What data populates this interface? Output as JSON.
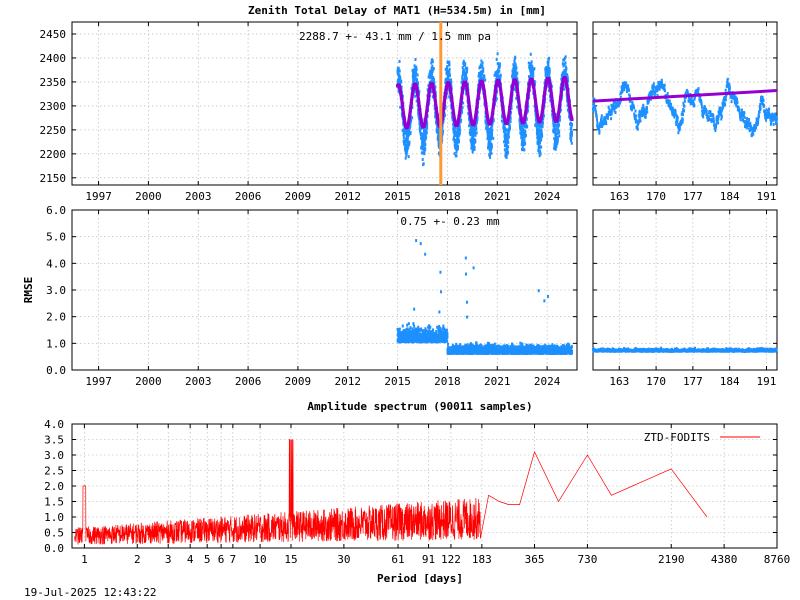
{
  "figure": {
    "title": "Zenith Total Delay of MAT1 (H=534.5m) in [mm]",
    "timestamp": "19-Jul-2025 12:43:22"
  },
  "colors": {
    "data_points": "#1e90ff",
    "model_points": "#9400d3",
    "vertical_marker": "#ff9933",
    "spectrum_line": "#ff0000"
  },
  "chart_data": [
    {
      "id": "ztd_timeseries",
      "type": "scatter",
      "annotation": "2288.7 +-  43.1 mm /  1.5 mm pa",
      "xlim": [
        1995.4,
        2025.8
      ],
      "ylim": [
        2135,
        2475
      ],
      "x_ticks": [
        "1997",
        "2000",
        "2003",
        "2006",
        "2009",
        "2012",
        "2015",
        "2018",
        "2021",
        "2024"
      ],
      "y_ticks": [
        "2150",
        "2200",
        "2250",
        "2300",
        "2350",
        "2400",
        "2450"
      ],
      "data_start": 2015.0,
      "data_end": 2025.5,
      "mean": 2288.7,
      "std": 43.1,
      "trend_mm_per_year": 1.5,
      "annual_amplitude": 70,
      "model_annual_amplitude": 45,
      "vertical_marker_year": 2017.6,
      "grid": true
    },
    {
      "id": "ztd_zoom",
      "type": "scatter",
      "xlim": [
        158,
        193
      ],
      "ylim": [
        2135,
        2475
      ],
      "x_ticks": [
        "163",
        "170",
        "177",
        "184",
        "191"
      ],
      "model_start": 2310,
      "model_end": 2332,
      "grid": true
    },
    {
      "id": "rmse_timeseries",
      "type": "scatter",
      "annotation": "0.75 +-  0.23 mm",
      "ylabel": "RMSE",
      "xlim": [
        1995.4,
        2025.8
      ],
      "ylim": [
        0,
        6
      ],
      "x_ticks": [
        "1997",
        "2000",
        "2003",
        "2006",
        "2009",
        "2012",
        "2015",
        "2018",
        "2021",
        "2024"
      ],
      "y_ticks": [
        "0.0",
        "1.0",
        "2.0",
        "3.0",
        "4.0",
        "5.0",
        "6.0"
      ],
      "mean": 0.75,
      "std": 0.23,
      "grid": true
    },
    {
      "id": "rmse_zoom",
      "type": "scatter",
      "xlim": [
        158,
        193
      ],
      "ylim": [
        0,
        6
      ],
      "x_ticks": [
        "163",
        "170",
        "177",
        "184",
        "191"
      ],
      "level": 0.7,
      "grid": true
    },
    {
      "id": "amplitude_spectrum",
      "type": "line",
      "title": "Amplitude spectrum (90011 samples)",
      "xlabel": "Period [days]",
      "x_scale": "log",
      "xlim": [
        0.85,
        8760
      ],
      "ylim": [
        0,
        4
      ],
      "x_ticks": [
        "1",
        "2",
        "3",
        "4",
        "5",
        "6",
        "7",
        "10",
        "15",
        "30",
        "61",
        "91",
        "122",
        "183",
        "365",
        "730",
        "2190",
        "4380",
        "8760"
      ],
      "y_ticks": [
        "0.0",
        "0.5",
        "1.0",
        "1.5",
        "2.0",
        "2.5",
        "3.0",
        "3.5",
        "4.0"
      ],
      "legend": {
        "label": "ZTD-FODITS",
        "position": "top-right"
      },
      "series": [
        {
          "name": "ZTD-FODITS",
          "peaks_x": [
            200,
            230,
            260,
            300,
            365,
            500,
            730,
            1000,
            2190,
            3500
          ],
          "peaks_y": [
            1.7,
            1.5,
            1.4,
            1.4,
            3.1,
            1.5,
            3.0,
            1.7,
            2.55,
            1.0
          ]
        }
      ],
      "grid": true
    }
  ]
}
